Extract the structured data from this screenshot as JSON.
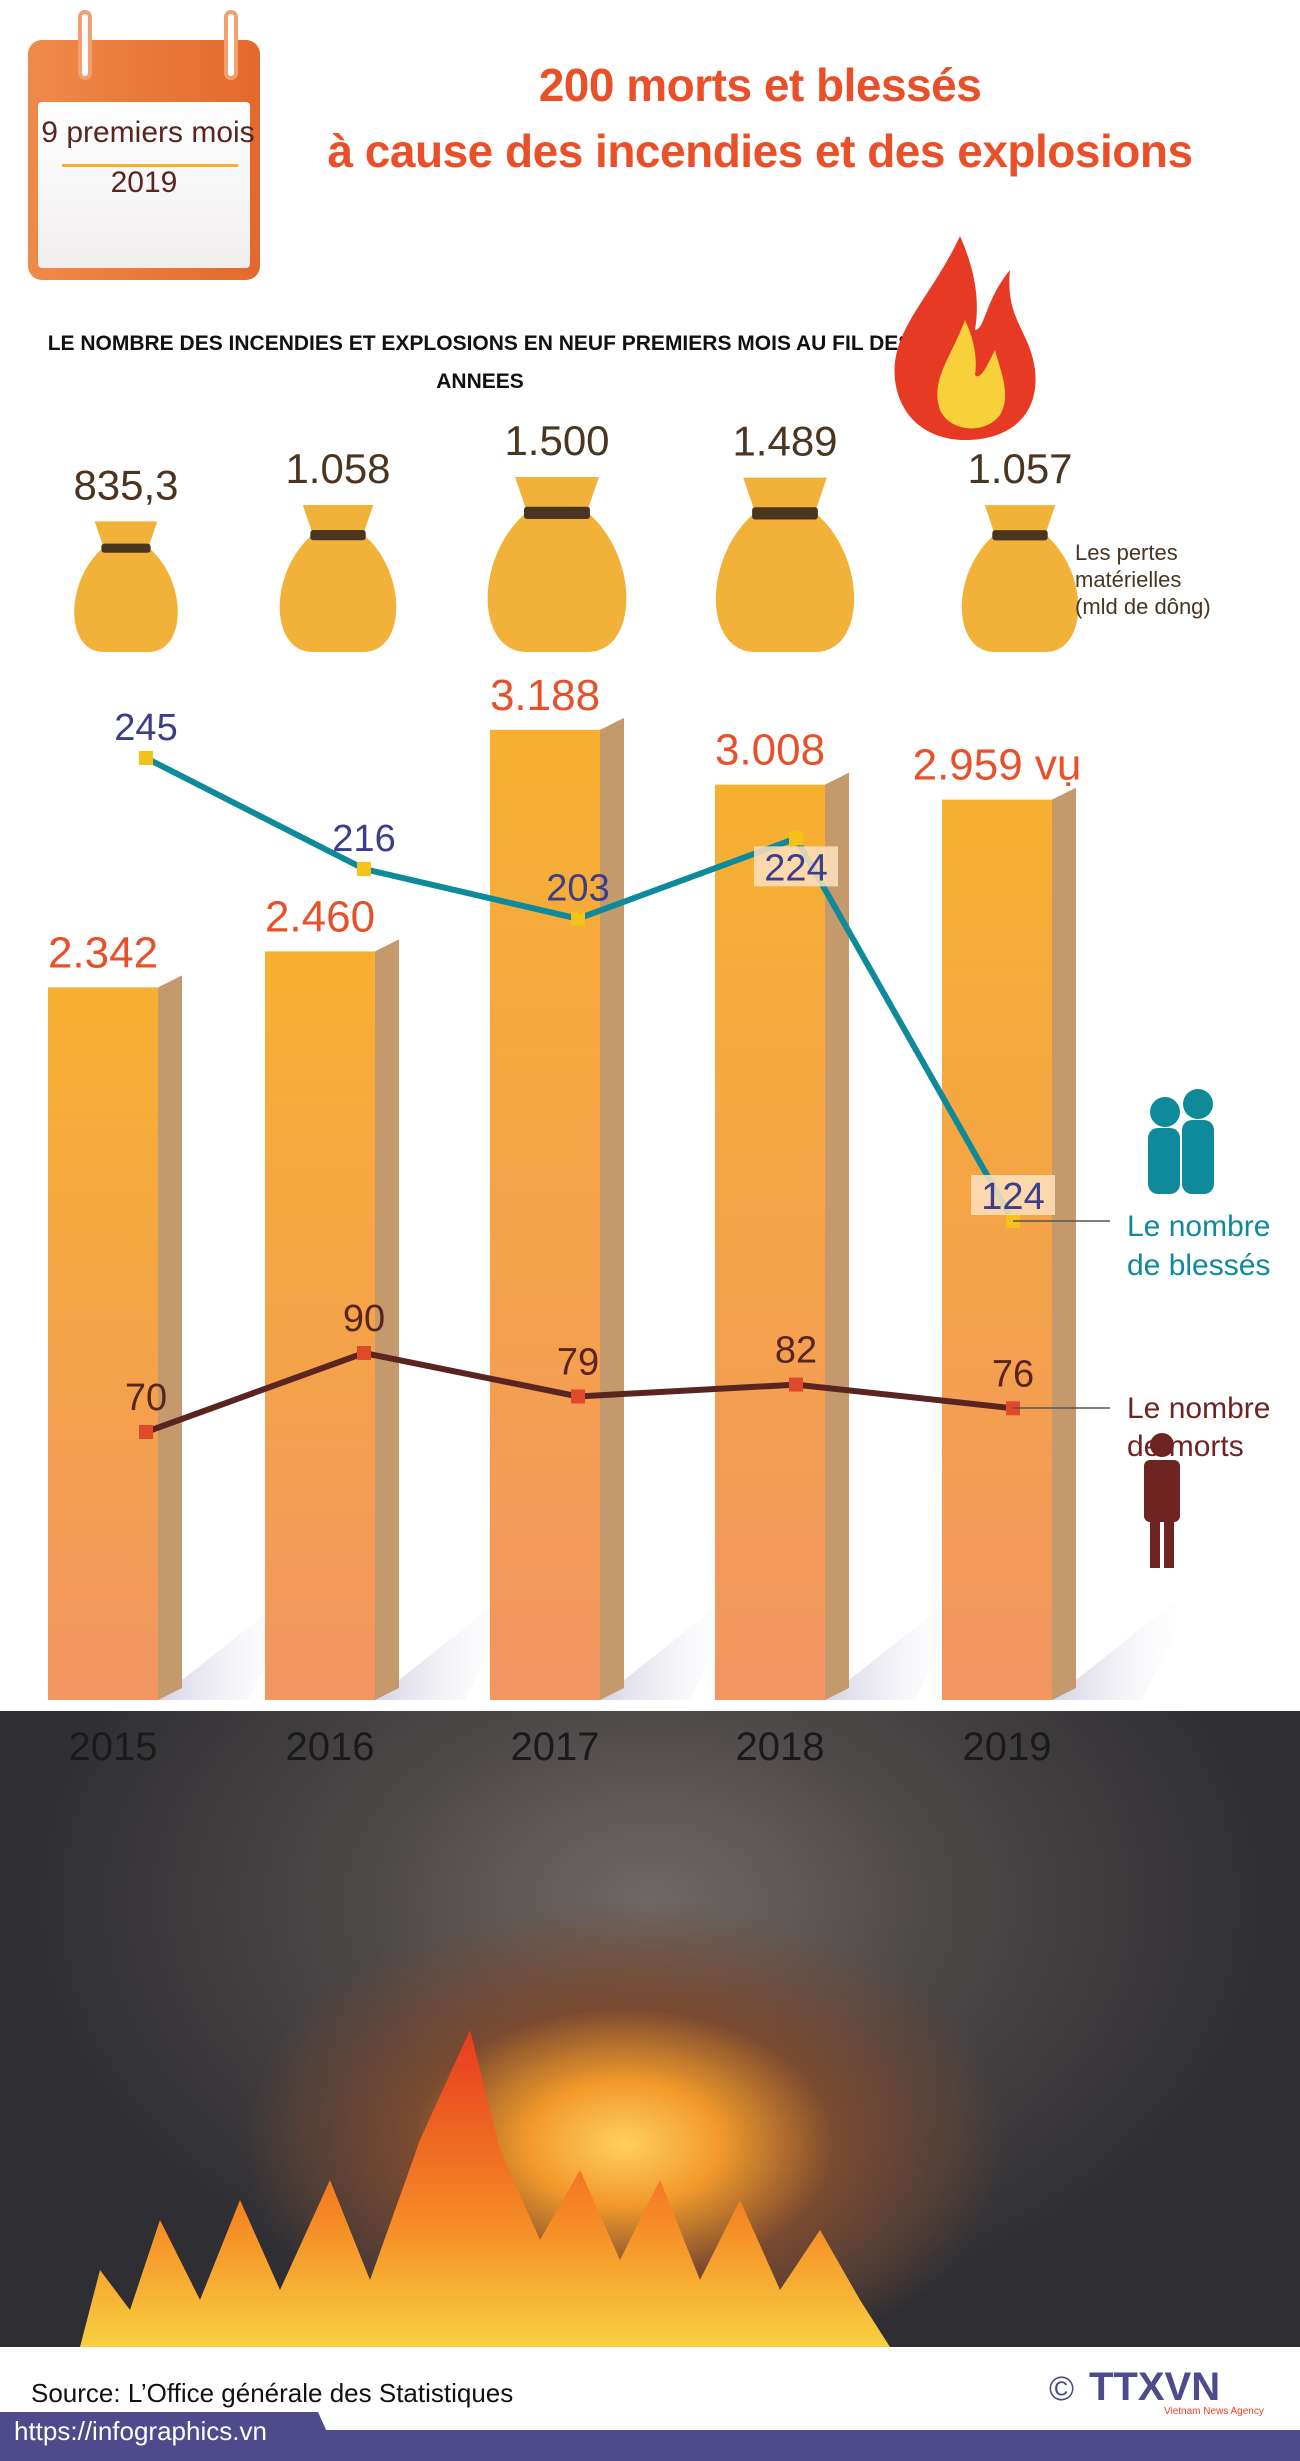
{
  "header": {
    "calendar_line1": "9 premiers mois",
    "calendar_line2": "2019",
    "title_line1": "200 morts et blessés",
    "title_line2": "à cause des incendies et des explosions"
  },
  "chart_data": {
    "type": "bar",
    "title": "LE NOMBRE DES INCENDIES ET EXPLOSIONS EN NEUF PREMIERS MOIS AU FIL DES ANNEES",
    "categories": [
      "2015",
      "2016",
      "2017",
      "2018",
      "2019"
    ],
    "fires": {
      "values": [
        2342,
        2460,
        3188,
        3008,
        2959
      ],
      "labels": [
        "2.342",
        "2.460",
        "3.188",
        "3.008",
        "2.959 vụ"
      ],
      "color": "#f5a83a"
    },
    "losses": {
      "name": "Les pertes matérielles (mld de dông)",
      "name_line1": "Les pertes",
      "name_line2": "matérielles",
      "name_line3": "(mld de dông)",
      "values": [
        835.3,
        1058,
        1500,
        1489,
        1057
      ],
      "labels": [
        "835,3",
        "1.058",
        "1.500",
        "1.489",
        "1.057"
      ]
    },
    "injured": {
      "name_line1": "Le nombre",
      "name_line2": "de blessés",
      "values": [
        245,
        216,
        203,
        224,
        124
      ],
      "color": "#0e8a9a"
    },
    "deaths": {
      "name_line1": "Le nombre",
      "name_line2": "de morts",
      "values": [
        70,
        90,
        79,
        82,
        76
      ],
      "color": "#5a2420"
    }
  },
  "footer": {
    "source": "Source: L’Office générale des Statistiques",
    "url": "https://infographics.vn",
    "logo_text": "TTXVN",
    "logo_sub": "Vietnam News Agency",
    "copyright": "©"
  },
  "colors": {
    "title": "#e8502a",
    "footer": "#4e4a8c",
    "bag": "#f2b23a"
  }
}
